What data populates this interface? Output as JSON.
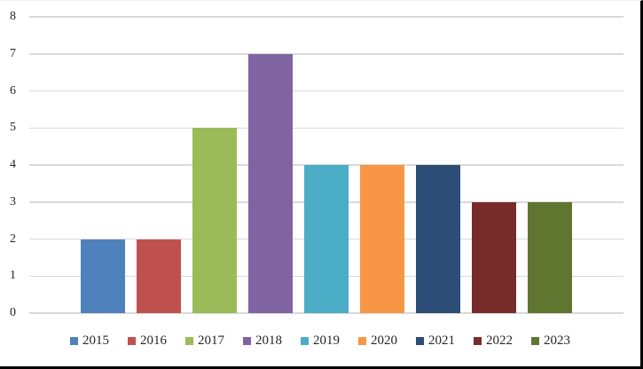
{
  "chart_data": {
    "type": "bar",
    "title": "",
    "xlabel": "",
    "ylabel": "",
    "categories": [
      "2015",
      "2016",
      "2017",
      "2018",
      "2019",
      "2020",
      "2021",
      "2022",
      "2023"
    ],
    "values": [
      2,
      2,
      5,
      7,
      4,
      4,
      4,
      3,
      3
    ],
    "colors": [
      "#4f81bd",
      "#c0504d",
      "#9bbb59",
      "#8064a2",
      "#4bacc6",
      "#f79646",
      "#2c4d75",
      "#772c2b",
      "#5f7530"
    ],
    "ylim": [
      0,
      8
    ],
    "yticks": [
      0,
      1,
      2,
      3,
      4,
      5,
      6,
      7,
      8
    ],
    "grid": true,
    "gridline_color": "#d9d9d9",
    "legend_position": "bottom",
    "border_color": "#000000"
  }
}
